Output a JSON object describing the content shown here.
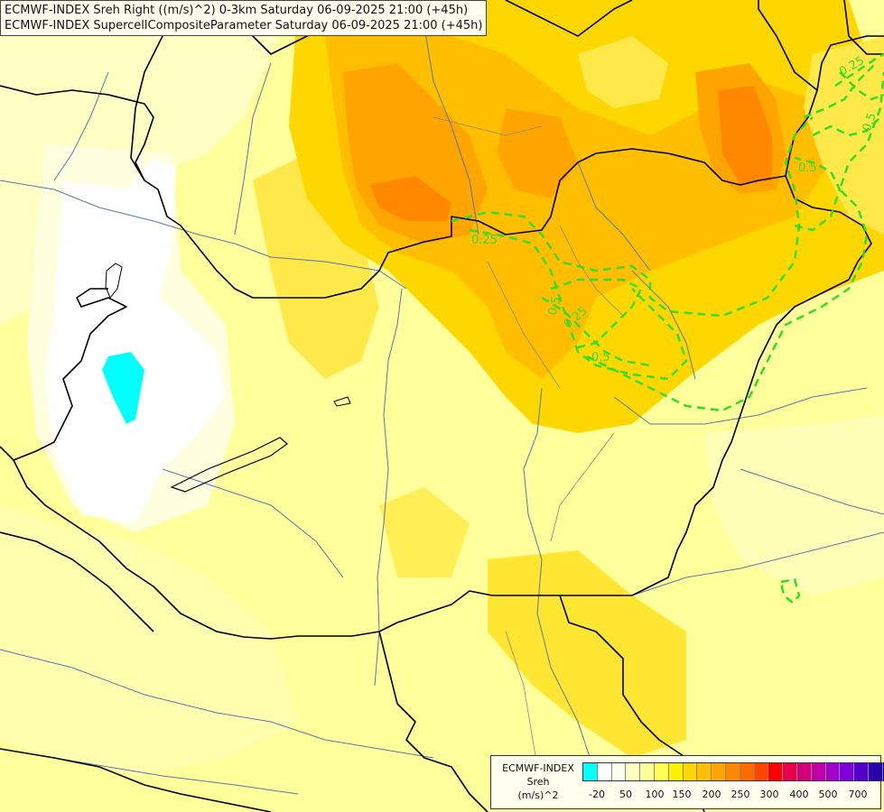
{
  "header": {
    "line1": "ECMWF-INDEX Sreh Right ((m/s)^2) 0-3km Saturday 06-09-2025 21:00 (+45h)",
    "line2": "ECMWF-INDEX SupercellCompositeParameter Saturday 06-09-2025 21:00 (+45h)"
  },
  "map": {
    "contour_labels": [
      "0.25",
      "0.5",
      "0.5",
      "0.5",
      "0.5",
      "0.25",
      "0.25"
    ],
    "contour_color": "#33dd22",
    "boundary_color": "#000000",
    "river_color": "#5577aa"
  },
  "legend": {
    "title_line1": "ECMWF-INDEX",
    "title_line2": "Sreh",
    "title_line3": "(m/s)^2",
    "colors": [
      "#00ffff",
      "#ffffff",
      "#fffff0",
      "#ffffc4",
      "#ffff99",
      "#ffff55",
      "#fff000",
      "#ffd700",
      "#ffbf00",
      "#ffa500",
      "#ff8800",
      "#ff6a00",
      "#ff4500",
      "#ff0000",
      "#e8004c",
      "#d4007a",
      "#c000a8",
      "#a300cc",
      "#8000e0",
      "#5500cc",
      "#2a00aa",
      "#000080"
    ],
    "tick_labels": [
      "-20",
      "50",
      "100",
      "150",
      "200",
      "250",
      "300",
      "400",
      "500",
      "700"
    ]
  }
}
